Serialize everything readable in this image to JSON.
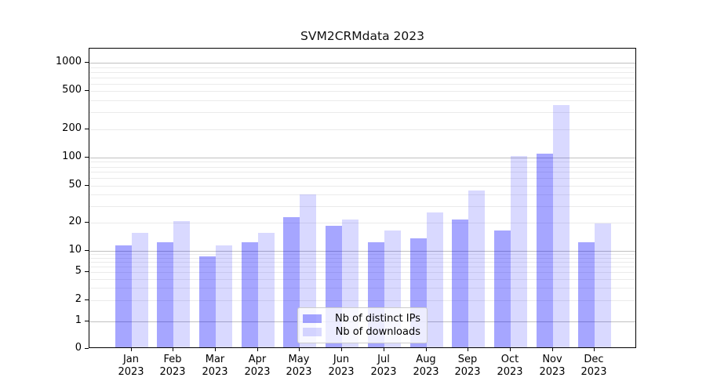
{
  "title": "SVM2CRMdata 2023",
  "chart_data": {
    "type": "bar",
    "title": "SVM2CRMdata 2023",
    "months": [
      "Jan",
      "Feb",
      "Mar",
      "Apr",
      "May",
      "Jun",
      "Jul",
      "Aug",
      "Sep",
      "Oct",
      "Nov",
      "Dec"
    ],
    "year": "2023",
    "series": [
      {
        "name": "Nb of distinct IPs",
        "color": "rgba(0,0,255,0.35)",
        "values": [
          11,
          12,
          8,
          12,
          22,
          18,
          12,
          13,
          21,
          16,
          105,
          12
        ]
      },
      {
        "name": "Nb of downloads",
        "color": "rgba(0,0,255,0.15)",
        "values": [
          15,
          20,
          11,
          15,
          39,
          21,
          16,
          25,
          43,
          100,
          345,
          19
        ]
      }
    ],
    "yscale": "symlog",
    "ytick_values": [
      0,
      1,
      2,
      5,
      10,
      20,
      50,
      100,
      200,
      500,
      1000
    ],
    "ytick_labels": [
      "0",
      "1",
      "2",
      "5",
      "10",
      "20",
      "50",
      "100",
      "200",
      "500",
      "1000"
    ],
    "ylim": [
      0,
      1400
    ],
    "grid": "horizontal major and minor log gridlines",
    "legend_position": "lower center",
    "colors": {
      "bar_dark": "rgba(0,0,255,0.35)",
      "bar_light": "rgba(0,0,255,0.15)",
      "grid_major": "#c0c0c0",
      "grid_minor": "#ebebeb",
      "axis": "#000000"
    }
  }
}
